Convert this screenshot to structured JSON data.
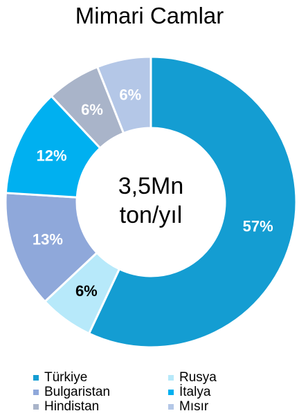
{
  "chart_data": {
    "type": "pie",
    "title": "Mimari Camlar",
    "center_label": [
      "3,5Mn",
      "ton/yıl"
    ],
    "legend_position": "bottom",
    "slices": [
      {
        "name": "Türkiye",
        "value": 57,
        "label": "57%",
        "color": "#149DD2",
        "label_color": "#FFFFFF"
      },
      {
        "name": "Rusya",
        "value": 6,
        "label": "6%",
        "color": "#B7E9FA",
        "label_color": "#000000"
      },
      {
        "name": "Bulgaristan",
        "value": 13,
        "label": "13%",
        "color": "#8FA8DA",
        "label_color": "#FFFFFF"
      },
      {
        "name": "İtalya",
        "value": 12,
        "label": "12%",
        "color": "#00B0F0",
        "label_color": "#FFFFFF"
      },
      {
        "name": "Hindistan",
        "value": 6,
        "label": "6%",
        "color": "#A9B4C9",
        "label_color": "#FFFFFF"
      },
      {
        "name": "Mısır",
        "value": 6,
        "label": "6%",
        "color": "#B4C7E7",
        "label_color": "#FFFFFF"
      }
    ],
    "legend_order": [
      "Türkiye",
      "Rusya",
      "Bulgaristan",
      "İtalya",
      "Hindistan",
      "Mısır"
    ]
  }
}
